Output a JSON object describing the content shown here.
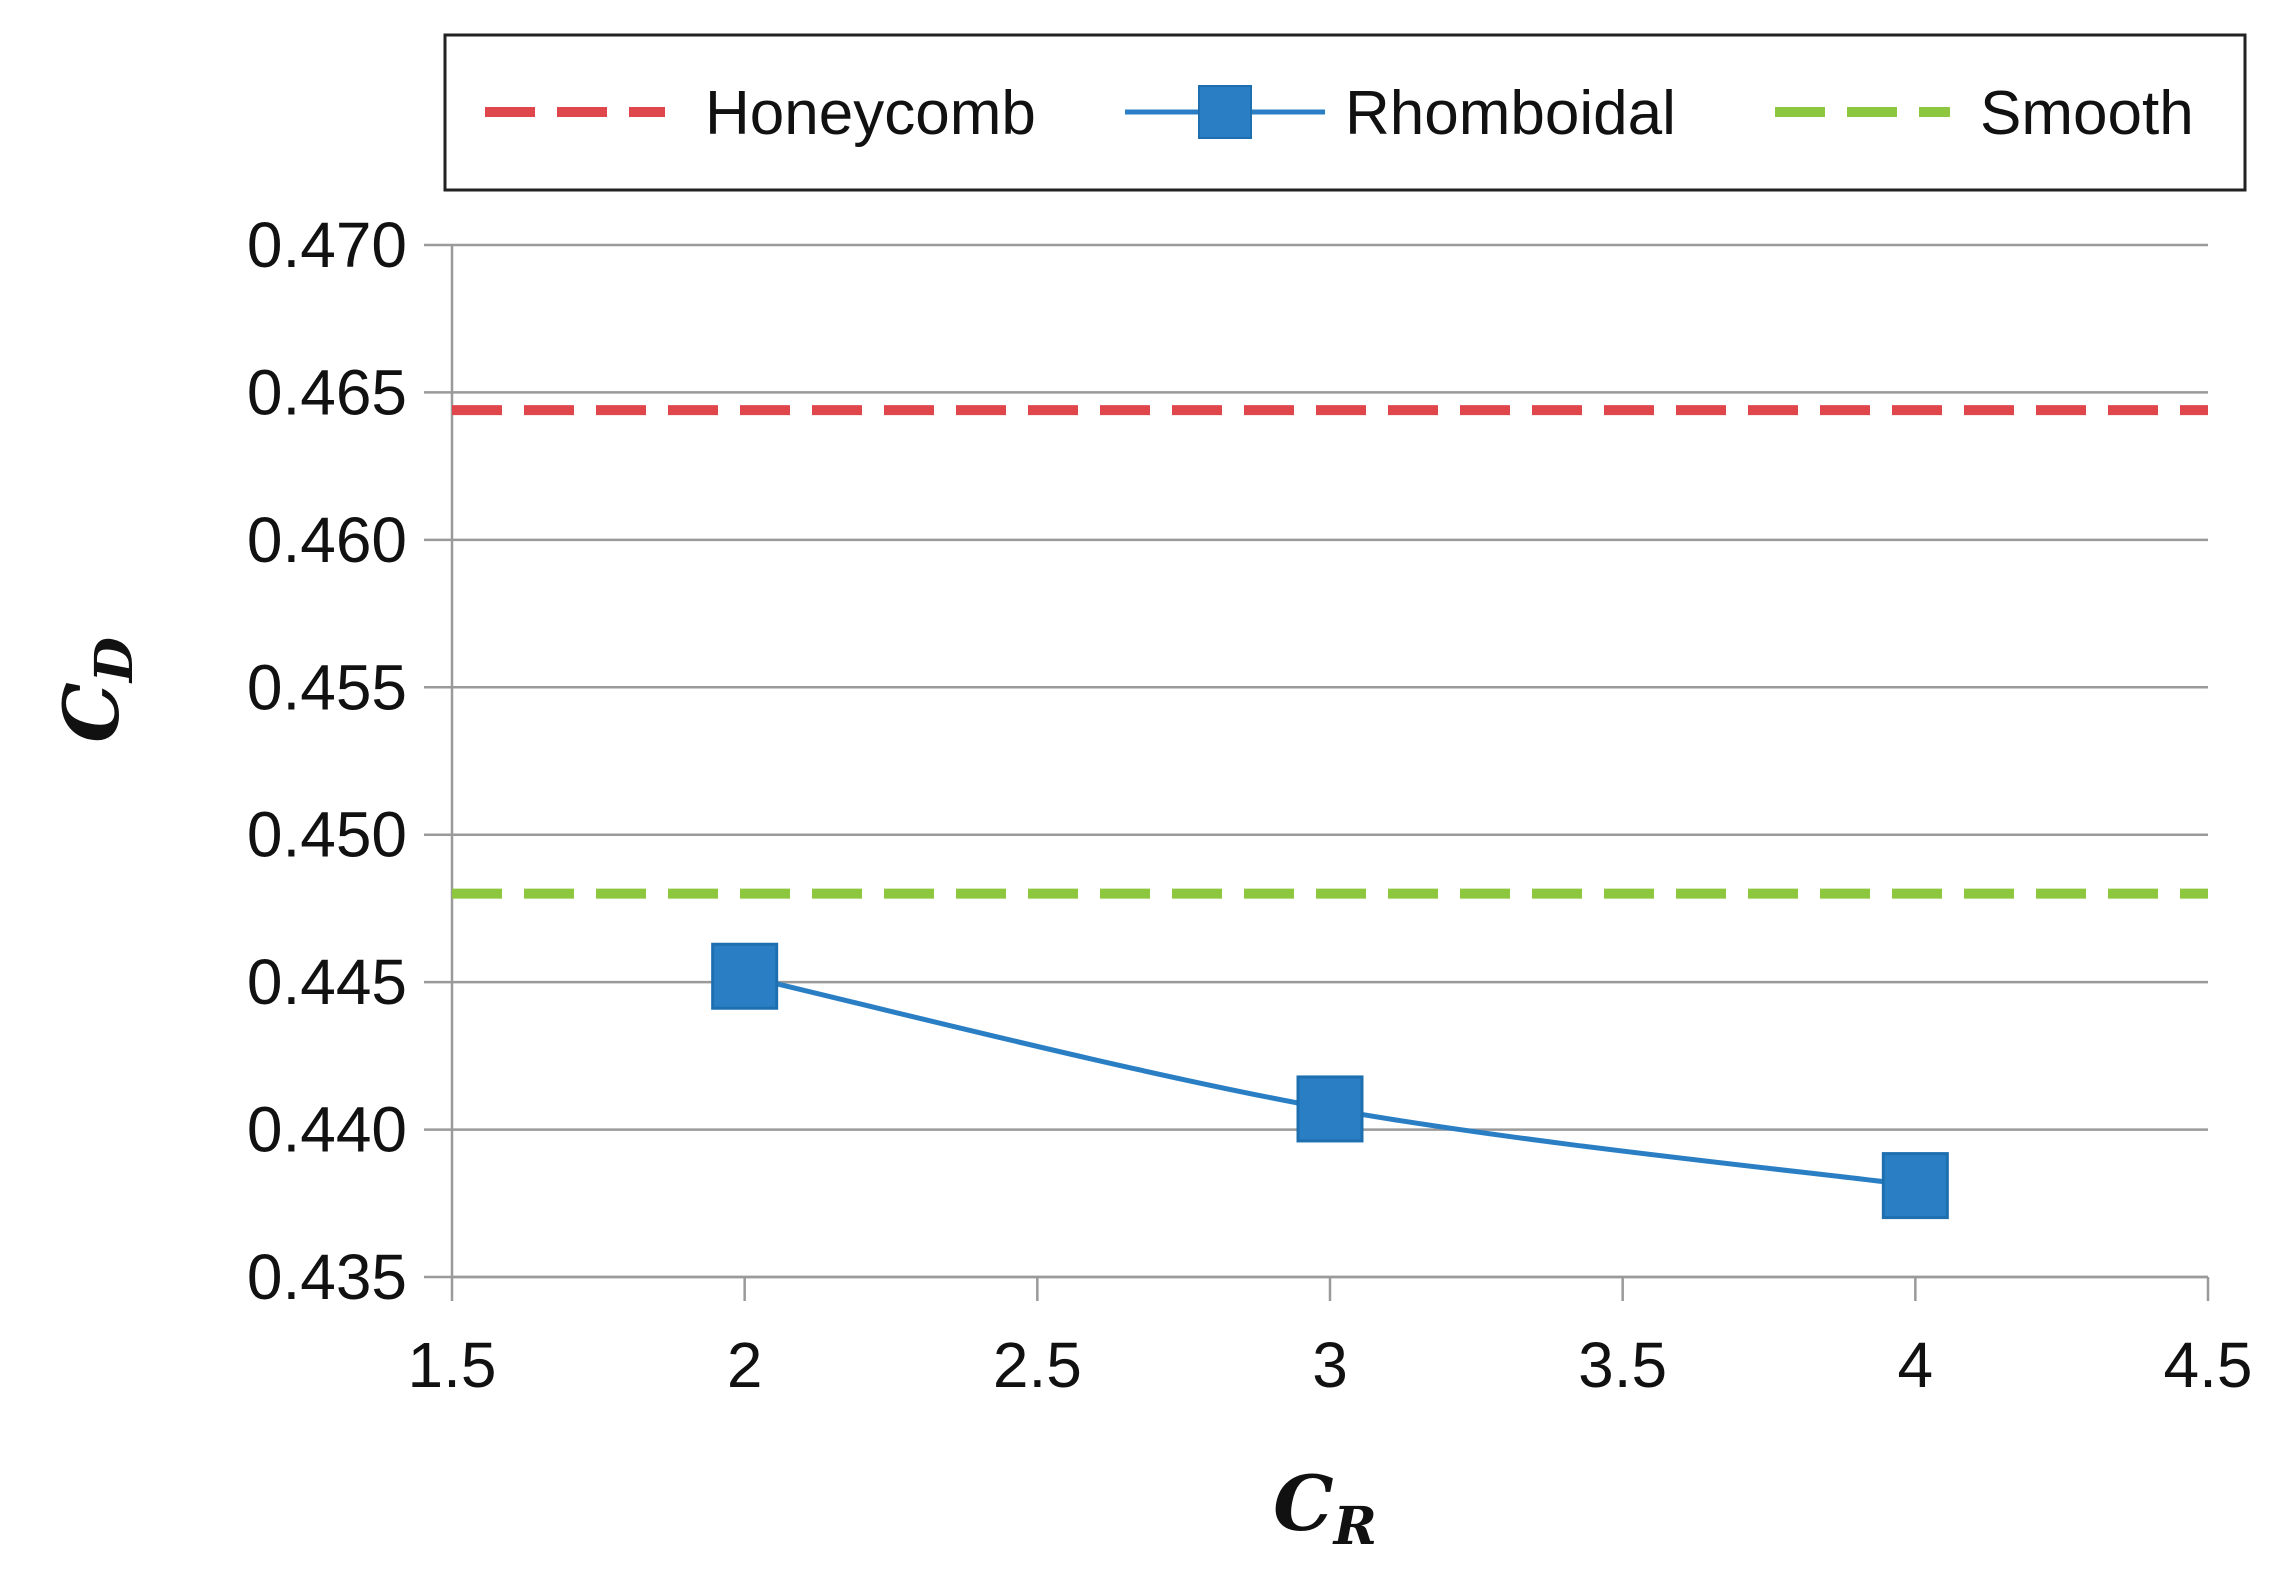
{
  "chart_data": {
    "type": "line",
    "title": "",
    "xlabel": {
      "main": "C",
      "sub": "R"
    },
    "ylabel": {
      "main": "C",
      "sub": "D"
    },
    "xlim": [
      1.5,
      4.5
    ],
    "ylim": [
      0.435,
      0.47
    ],
    "xticks": [
      1.5,
      2,
      2.5,
      3,
      3.5,
      4,
      4.5
    ],
    "xtick_labels": [
      "1.5",
      "2",
      "2.5",
      "3",
      "3.5",
      "4",
      "4.5"
    ],
    "yticks": [
      0.435,
      0.44,
      0.445,
      0.45,
      0.455,
      0.46,
      0.465,
      0.47
    ],
    "ytick_labels": [
      "0.435",
      "0.440",
      "0.445",
      "0.450",
      "0.455",
      "0.460",
      "0.465",
      "0.470"
    ],
    "grid": "horizontal",
    "legend_position": "top",
    "series": [
      {
        "name": "Honeycomb",
        "kind": "constant",
        "style": "dashed",
        "color": "#e0474c",
        "value": 0.4644
      },
      {
        "name": "Rhomboidal",
        "kind": "line-markers",
        "style": "solid",
        "color": "#2a7ec4",
        "marker": "square",
        "x": [
          2,
          3,
          4
        ],
        "values": [
          0.4452,
          0.4407,
          0.4381
        ]
      },
      {
        "name": "Smooth",
        "kind": "constant",
        "style": "dashed",
        "color": "#8dc63f",
        "value": 0.448
      }
    ]
  }
}
